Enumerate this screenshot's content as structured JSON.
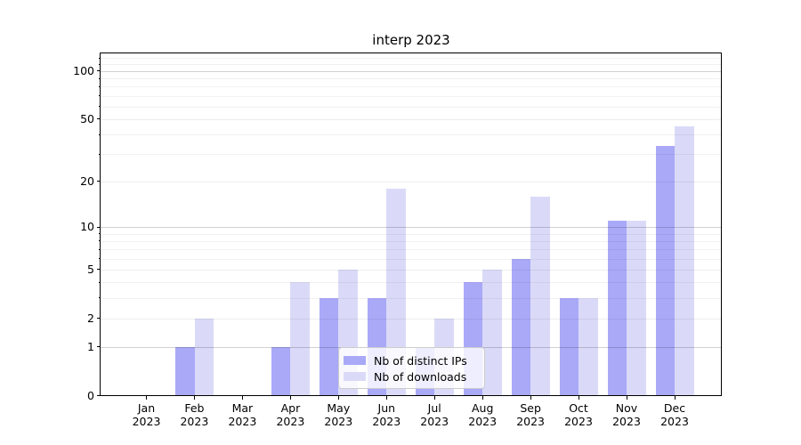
{
  "chart_data": {
    "type": "bar",
    "title": "interp 2023",
    "categories": [
      "Jan",
      "Feb",
      "Mar",
      "Apr",
      "May",
      "Jun",
      "Jul",
      "Aug",
      "Sep",
      "Oct",
      "Nov",
      "Dec"
    ],
    "year": "2023",
    "series": [
      {
        "name": "Nb of distinct IPs",
        "color": "#a9a9f8",
        "values": [
          0,
          1,
          0,
          1,
          3,
          3,
          1,
          4,
          6,
          3,
          11,
          34
        ]
      },
      {
        "name": "Nb of downloads",
        "color": "#dadaf8",
        "values": [
          0,
          2,
          0,
          4,
          5,
          18,
          2,
          5,
          16,
          3,
          11,
          45
        ]
      }
    ],
    "yscale": "log1p",
    "ylim": [
      0,
      128
    ],
    "yticks": [
      0,
      1,
      2,
      5,
      10,
      20,
      50,
      100
    ],
    "minor_yticks": [
      3,
      4,
      6,
      7,
      8,
      9,
      30,
      40,
      60,
      70,
      80,
      90,
      110,
      120
    ],
    "grid": true,
    "legend_position": "lower center"
  }
}
